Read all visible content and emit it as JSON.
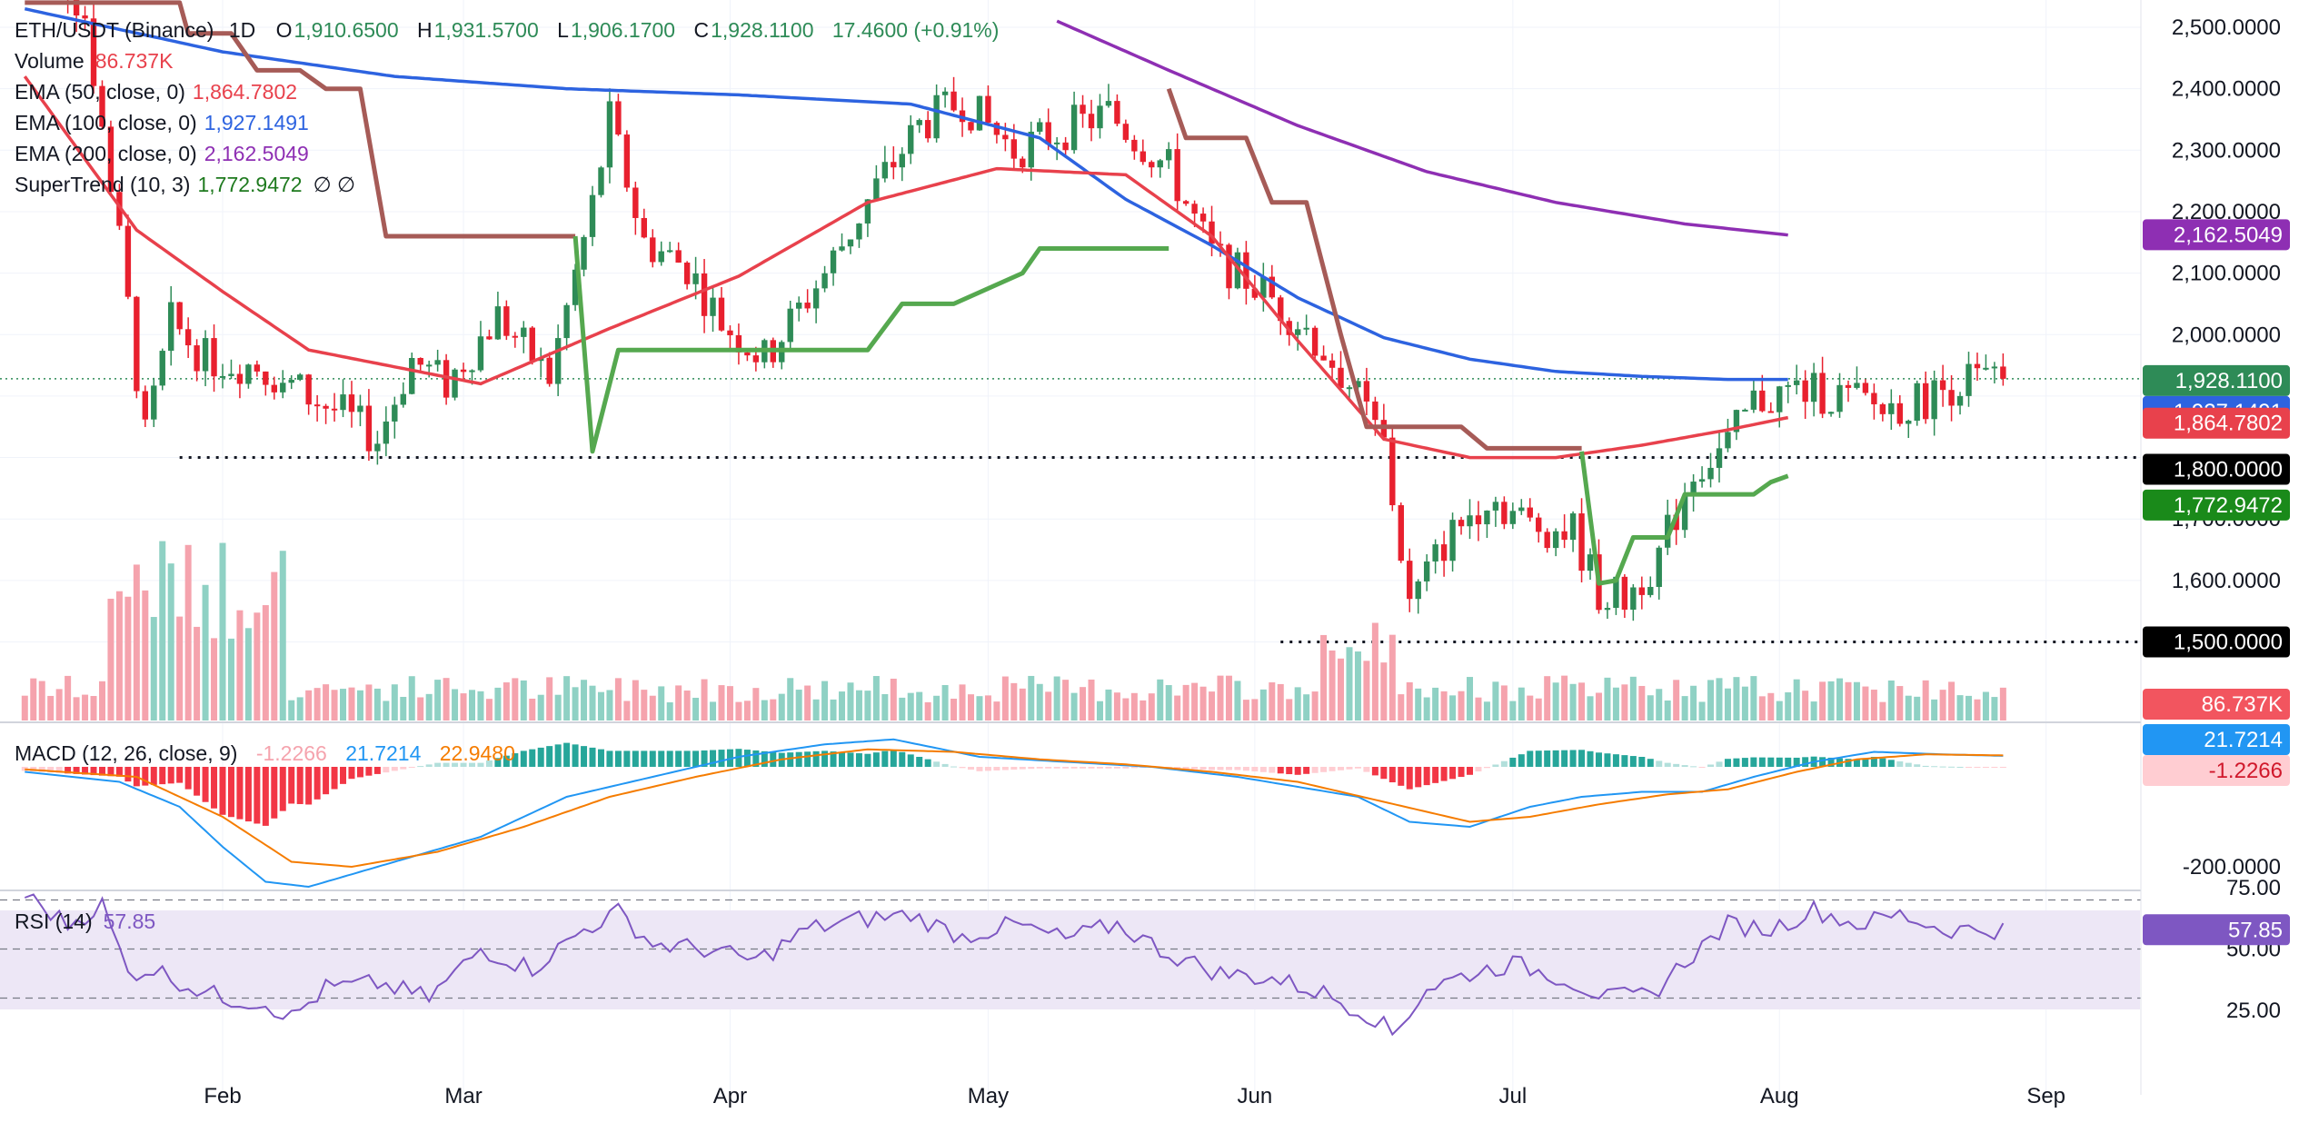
{
  "header": {
    "symbol": "ETH/USDT (Binance)",
    "interval": "1D",
    "o_label": "O",
    "o_value": "1,910.6500",
    "h_label": "H",
    "h_value": "1,931.5700",
    "l_label": "L",
    "l_value": "1,906.1700",
    "c_label": "C",
    "c_value": "1,928.1100",
    "change": "17.4600 (+0.91%)"
  },
  "legend": {
    "volume": {
      "label": "Volume",
      "value": "86.737K"
    },
    "ema50": {
      "label": "EMA (50, close, 0)",
      "value": "1,864.7802"
    },
    "ema100": {
      "label": "EMA (100, close, 0)",
      "value": "1,927.1491"
    },
    "ema200": {
      "label": "EMA (200, close, 0)",
      "value": "2,162.5049"
    },
    "supertrend": {
      "label": "SuperTrend (10, 3)",
      "value": "1,772.9472",
      "extra": "∅ ∅"
    },
    "macd": {
      "label": "MACD (12, 26, close, 9)",
      "hist": "-1.2266",
      "macd": "21.7214",
      "signal": "22.9480"
    },
    "rsi": {
      "label": "RSI (14)",
      "value": "57.85"
    }
  },
  "colors": {
    "up": "#2e8b57",
    "down": "#e8202e",
    "vol_up": "#8fd1c4",
    "vol_down": "#f5a3ad",
    "ema50": "#e8414c",
    "ema100": "#2d63e0",
    "ema200": "#8e2fb3",
    "st_up": "#55a84f",
    "st_down": "#a65b57",
    "macd": "#2196f3",
    "signal": "#f57c00",
    "rsi": "#7e57c2",
    "rsi_band": "#ede7f6"
  },
  "price_axis": [
    "2,500.0000",
    "2,400.0000",
    "2,300.0000",
    "2,200.0000",
    "2,100.0000",
    "2,000.0000",
    "1,700.0000",
    "1,600.0000",
    "1,500.0000"
  ],
  "macd_axis": [
    "-200.0000"
  ],
  "rsi_axis": [
    "75.00",
    "50.00",
    "25.00"
  ],
  "price_labels": {
    "ema200": "2,162.5049",
    "close": "1,928.1100",
    "ema100": "1,927.1491",
    "ema50": "1,864.7802",
    "level_1800": "1,800.0000",
    "supertrend": "1,772.9472",
    "level_1500": "1,500.0000",
    "volume": "86.737K",
    "macd": "21.7214",
    "hist": "-1.2266",
    "rsi": "57.85"
  },
  "time_axis": [
    "Feb",
    "Mar",
    "Apr",
    "May",
    "Jun",
    "Jul",
    "Aug",
    "Sep"
  ],
  "chart_data": {
    "type": "candlestick",
    "symbol": "ETH/USDT",
    "interval": "1D",
    "y_range_price": [
      1480,
      2510
    ],
    "horizontal_levels": [
      1800,
      1500
    ],
    "ema_keypoints": {
      "ema50": [
        [
          -23,
          2420
        ],
        [
          -10,
          2170
        ],
        [
          0,
          2070
        ],
        [
          10,
          1975
        ],
        [
          30,
          1920
        ],
        [
          45,
          2010
        ],
        [
          60,
          2095
        ],
        [
          75,
          2215
        ],
        [
          90,
          2270
        ],
        [
          105,
          2260
        ],
        [
          115,
          2160
        ],
        [
          125,
          1990
        ],
        [
          135,
          1830
        ],
        [
          145,
          1800
        ],
        [
          155,
          1800
        ],
        [
          165,
          1820
        ],
        [
          175,
          1845
        ],
        [
          182,
          1865
        ]
      ],
      "ema100": [
        [
          -23,
          2530
        ],
        [
          0,
          2460
        ],
        [
          20,
          2420
        ],
        [
          40,
          2400
        ],
        [
          60,
          2390
        ],
        [
          80,
          2375
        ],
        [
          95,
          2320
        ],
        [
          105,
          2220
        ],
        [
          115,
          2145
        ],
        [
          125,
          2060
        ],
        [
          135,
          1995
        ],
        [
          145,
          1960
        ],
        [
          155,
          1940
        ],
        [
          165,
          1932
        ],
        [
          175,
          1927
        ],
        [
          182,
          1927
        ]
      ],
      "ema200": [
        [
          97,
          2510
        ],
        [
          110,
          2430
        ],
        [
          125,
          2340
        ],
        [
          140,
          2265
        ],
        [
          155,
          2215
        ],
        [
          170,
          2180
        ],
        [
          182,
          2162
        ]
      ]
    },
    "supertrend_keypoints": [
      {
        "trend": "down",
        "points": [
          [
            -23,
            2540
          ],
          [
            -5,
            2540
          ],
          [
            -4,
            2490
          ],
          [
            1,
            2490
          ],
          [
            4,
            2430
          ],
          [
            9,
            2430
          ],
          [
            12,
            2400
          ],
          [
            16,
            2400
          ],
          [
            19,
            2160
          ],
          [
            35,
            2160
          ],
          [
            41,
            2160
          ]
        ]
      },
      {
        "trend": "up",
        "points": [
          [
            41,
            2160
          ],
          [
            43,
            1810
          ],
          [
            46,
            1975
          ],
          [
            55,
            1975
          ],
          [
            75,
            1975
          ],
          [
            79,
            2050
          ],
          [
            85,
            2050
          ],
          [
            93,
            2100
          ],
          [
            95,
            2140
          ],
          [
            110,
            2140
          ]
        ]
      },
      {
        "trend": "down",
        "points": [
          [
            110,
            2400
          ],
          [
            112,
            2320
          ],
          [
            119,
            2320
          ],
          [
            122,
            2215
          ],
          [
            126,
            2215
          ],
          [
            130,
            2000
          ],
          [
            133,
            1850
          ],
          [
            144,
            1850
          ],
          [
            147,
            1815
          ],
          [
            158,
            1815
          ]
        ]
      },
      {
        "trend": "up",
        "points": [
          [
            158,
            1810
          ],
          [
            160,
            1595
          ],
          [
            162,
            1600
          ],
          [
            164,
            1670
          ],
          [
            168,
            1670
          ],
          [
            170,
            1740
          ],
          [
            178,
            1740
          ],
          [
            180,
            1760
          ],
          [
            182,
            1770
          ]
        ]
      }
    ],
    "candles_source": "procedural approximation from ema50 path with local swings",
    "macd": {
      "macd": 21.7214,
      "signal": 22.948,
      "hist": -1.2266
    },
    "rsi": {
      "value": 57.85,
      "bands": [
        70,
        50,
        30
      ]
    }
  }
}
